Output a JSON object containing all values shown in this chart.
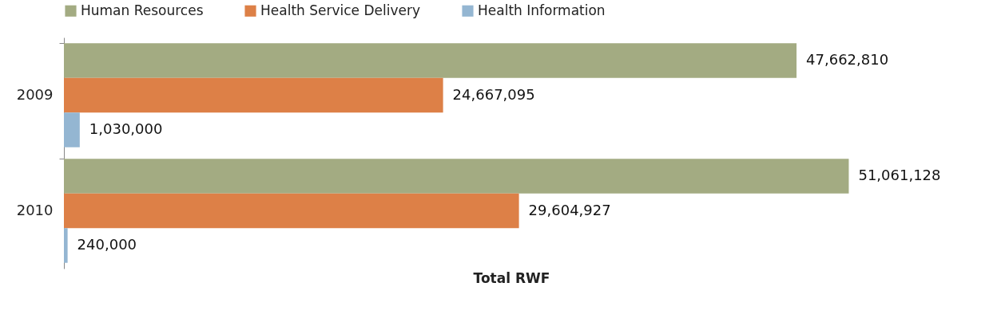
{
  "chart_data": {
    "type": "bar",
    "orientation": "horizontal",
    "xlabel": "Total RWF",
    "categories": [
      "2009",
      "2010"
    ],
    "series": [
      {
        "name": "Human Resources",
        "color": "#a3ab82",
        "values": [
          47662810,
          51061128
        ],
        "value_labels": [
          "47,662,810",
          "51,061,128"
        ]
      },
      {
        "name": "Health Service Delivery",
        "color": "#dd8047",
        "values": [
          24667095,
          29604927
        ],
        "value_labels": [
          "24,667,095",
          "29,604,927"
        ]
      },
      {
        "name": "Health Information",
        "color": "#94b6d2",
        "values": [
          1030000,
          240000
        ],
        "value_labels": [
          "1,030,000",
          "240,000"
        ]
      }
    ],
    "legend": "top",
    "grid": false
  }
}
